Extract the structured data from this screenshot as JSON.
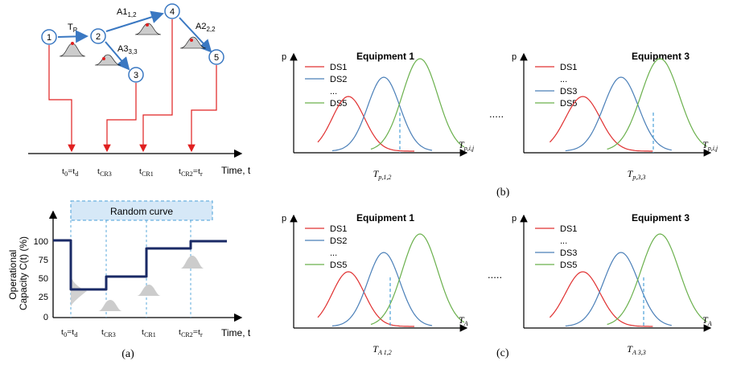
{
  "panel_a_top": {
    "nodes": [
      "1",
      "2",
      "3",
      "4",
      "5"
    ],
    "tp_label": "T",
    "tp_sub": "P",
    "a12": "A1",
    "a12_sub": "1,2",
    "a33": "A3",
    "a33_sub": "3,3",
    "a22": "A2",
    "a22_sub": "2,2",
    "t0": "t",
    "t0_sub": "0",
    "td": "=t",
    "td_sub": "d",
    "tcr3": "t",
    "tcr3_sub": "CR3",
    "tcr1": "t",
    "tcr1_sub": "CR1",
    "tcr2": "t",
    "tcr2_sub": "CR2",
    "tr": "=t",
    "tr_sub": "r",
    "time_label": "Time, t"
  },
  "panel_a_bottom": {
    "random_curve": "Random curve",
    "ylabel_1": "Operational",
    "ylabel_2": "Capacity C(t) (%)",
    "yticks": [
      "100",
      "75",
      "50",
      "25",
      "0"
    ],
    "t0": "t",
    "t0_sub": "0",
    "td": "=t",
    "td_sub": "d",
    "tcr3": "t",
    "tcr3_sub": "CR3",
    "tcr1": "t",
    "tcr1_sub": "CR1",
    "tcr2": "t",
    "tcr2_sub": "CR2",
    "tr": "=t",
    "tr_sub": "r",
    "time_label": "Time, t",
    "caption": "(a)",
    "capacity_levels_pct": [
      100,
      33,
      52,
      91,
      100
    ]
  },
  "panel_b": {
    "left": {
      "title": "Equipment 1",
      "ylabel": "p",
      "legend": [
        "DS1",
        "DS2",
        "...",
        "DS5"
      ],
      "xaxis_T": "T",
      "xaxis_sub": "p,i,j",
      "under_T": "T",
      "under_sub": "p,1,2"
    },
    "dots": ".....",
    "right": {
      "title": "Equipment 3",
      "ylabel": "p",
      "legend": [
        "DS1",
        "...",
        "DS3",
        "DS5"
      ],
      "xaxis_T": "T",
      "xaxis_sub": "p,i,j",
      "under_T": "T",
      "under_sub": "p,3,3"
    },
    "caption": "(b)"
  },
  "panel_c": {
    "left": {
      "title": "Equipment 1",
      "ylabel": "p",
      "legend": [
        "DS1",
        "DS2",
        "...",
        "DS5"
      ],
      "xaxis_T": "T",
      "xaxis_sub": "A",
      "under_T": "T",
      "under_sub": "A 1,2"
    },
    "dots": ".....",
    "right": {
      "title": "Equipment 3",
      "ylabel": "p",
      "legend": [
        "DS1",
        "...",
        "DS3",
        "DS5"
      ],
      "xaxis_T": "T",
      "xaxis_sub": "A",
      "under_T": "T",
      "under_sub": "A 3,3"
    },
    "caption": "(c)"
  },
  "colors": {
    "node_blue": "#3a78c2",
    "arrow_red": "#e02020",
    "curve_red": "#e03030",
    "curve_blue": "#4a7fb8",
    "curve_green": "#6ab04c",
    "capacity_navy": "#1a2a66",
    "random_fill": "#d6e8f7",
    "dash_blue": "#4aa0d8"
  }
}
